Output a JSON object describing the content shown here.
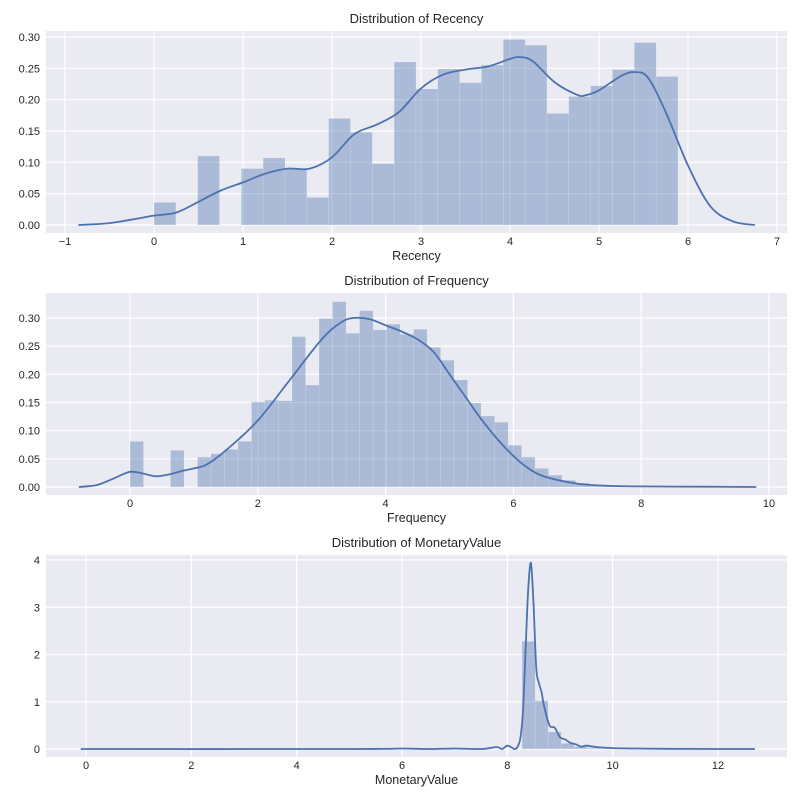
{
  "chart_data": [
    {
      "type": "histogram+kde",
      "title": "Distribution of Recency",
      "xlabel": "Recency",
      "ylabel": "",
      "xlim": [
        -1.2,
        7.1
      ],
      "ylim": [
        0,
        0.31
      ],
      "xticks": [
        -1,
        0,
        1,
        2,
        3,
        4,
        5,
        6,
        7
      ],
      "xtick_labels": [
        "−1",
        "0",
        "1",
        "2",
        "3",
        "4",
        "5",
        "6",
        "7"
      ],
      "yticks": [
        0.0,
        0.05,
        0.1,
        0.15,
        0.2,
        0.25,
        0.3
      ],
      "ytick_labels": [
        "0.00",
        "0.05",
        "0.10",
        "0.15",
        "0.20",
        "0.25",
        "0.30"
      ],
      "grid": true,
      "bins": {
        "start": 0,
        "width": 0.2453,
        "density": [
          0.036,
          0,
          0.11,
          0,
          0.09,
          0.107,
          0.09,
          0.044,
          0.17,
          0.148,
          0.098,
          0.26,
          0.217,
          0.249,
          0.227,
          0.255,
          0.296,
          0.287,
          0.178,
          0.205,
          0.222,
          0.248,
          0.291,
          0.237
        ]
      },
      "kde": {
        "x": [
          -0.85,
          -0.5,
          -0.2,
          0,
          0.25,
          0.5,
          0.75,
          1.0,
          1.25,
          1.5,
          1.75,
          2.0,
          2.25,
          2.5,
          2.75,
          3.0,
          3.25,
          3.5,
          3.75,
          4.0,
          4.1,
          4.25,
          4.5,
          4.75,
          4.85,
          5.0,
          5.25,
          5.4,
          5.55,
          5.75,
          6.0,
          6.25,
          6.5,
          6.75
        ],
        "y": [
          0.0,
          0.003,
          0.01,
          0.015,
          0.02,
          0.037,
          0.055,
          0.068,
          0.082,
          0.09,
          0.09,
          0.108,
          0.145,
          0.16,
          0.18,
          0.218,
          0.24,
          0.248,
          0.253,
          0.265,
          0.268,
          0.262,
          0.228,
          0.208,
          0.207,
          0.215,
          0.238,
          0.244,
          0.235,
          0.18,
          0.095,
          0.03,
          0.006,
          0.0
        ]
      }
    },
    {
      "type": "histogram+kde",
      "title": "Distribution of Frequency",
      "xlabel": "Frequency",
      "ylabel": "",
      "xlim": [
        -1.3,
        10.3
      ],
      "ylim": [
        0,
        0.345
      ],
      "xticks": [
        0,
        2,
        4,
        6,
        8,
        10
      ],
      "xtick_labels": [
        "0",
        "2",
        "4",
        "6",
        "8",
        "10"
      ],
      "yticks": [
        0.0,
        0.05,
        0.1,
        0.15,
        0.2,
        0.25,
        0.3
      ],
      "ytick_labels": [
        "0.00",
        "0.05",
        "0.10",
        "0.15",
        "0.20",
        "0.25",
        "0.30"
      ],
      "grid": true,
      "bins": {
        "start": 0,
        "width": 0.2113,
        "density": [
          0.081,
          0,
          0,
          0.065,
          0,
          0.053,
          0.059,
          0.067,
          0.081,
          0.151,
          0.154,
          0.153,
          0.267,
          0.181,
          0.299,
          0.329,
          0.273,
          0.313,
          0.279,
          0.289,
          0.271,
          0.28,
          0.248,
          0.225,
          0.19,
          0.149,
          0.126,
          0.115,
          0.074,
          0.053,
          0.033,
          0.021,
          0.012,
          0.007,
          0.004,
          0.003,
          0.001
        ]
      },
      "kde": {
        "x": [
          -0.8,
          -0.5,
          -0.2,
          0,
          0.2,
          0.4,
          0.6,
          0.8,
          1.0,
          1.2,
          1.5,
          2.0,
          2.5,
          3.0,
          3.3,
          3.5,
          3.75,
          4.0,
          4.25,
          4.5,
          4.75,
          5.0,
          5.25,
          5.5,
          5.75,
          6.0,
          6.25,
          6.5,
          7.0,
          7.5,
          8.0,
          9.0,
          9.8
        ],
        "y": [
          0.0,
          0.004,
          0.018,
          0.027,
          0.024,
          0.019,
          0.022,
          0.028,
          0.033,
          0.04,
          0.065,
          0.118,
          0.19,
          0.262,
          0.292,
          0.3,
          0.298,
          0.287,
          0.276,
          0.262,
          0.24,
          0.2,
          0.16,
          0.12,
          0.085,
          0.055,
          0.032,
          0.018,
          0.006,
          0.002,
          0.001,
          0.0005,
          0.0
        ]
      }
    },
    {
      "type": "histogram+kde",
      "title": "Distribution of MonetaryValue",
      "xlabel": "MonetaryValue",
      "ylabel": "",
      "xlim": [
        -0.65,
        13.3
      ],
      "ylim": [
        0,
        4.1
      ],
      "xticks": [
        0,
        2,
        4,
        6,
        8,
        10,
        12
      ],
      "xtick_labels": [
        "0",
        "2",
        "4",
        "6",
        "8",
        "10",
        "12"
      ],
      "yticks": [
        0,
        1,
        2,
        3,
        4
      ],
      "ytick_labels": [
        "0",
        "1",
        "2",
        "3",
        "4"
      ],
      "grid": true,
      "bins": {
        "start": 8.28,
        "width": 0.247,
        "density": [
          2.28,
          1.02,
          0.36,
          0.12,
          0.05,
          0.02,
          0.01
        ]
      },
      "kde": {
        "x": [
          -0.1,
          5.0,
          6.0,
          6.5,
          7.0,
          7.5,
          7.8,
          7.9,
          8.0,
          8.1,
          8.15,
          8.2,
          8.25,
          8.3,
          8.35,
          8.4,
          8.45,
          8.5,
          8.55,
          8.6,
          8.65,
          8.7,
          8.8,
          8.9,
          9.0,
          9.1,
          9.2,
          9.3,
          9.4,
          9.5,
          9.7,
          10.0,
          10.5,
          11.0,
          12.0,
          12.7
        ],
        "y": [
          0.0,
          0.0,
          0.01,
          0.0,
          0.01,
          0.0,
          0.04,
          0.0,
          0.07,
          0.02,
          0.0,
          0.06,
          0.25,
          0.85,
          2.2,
          3.45,
          3.93,
          3.0,
          1.7,
          1.4,
          1.2,
          0.9,
          0.5,
          0.45,
          0.25,
          0.2,
          0.13,
          0.1,
          0.05,
          0.07,
          0.04,
          0.02,
          0.01,
          0.005,
          0.0,
          0.0
        ]
      }
    }
  ],
  "style": {
    "plot_background": "#eaeaf2",
    "grid_color": "#ffffff",
    "bar_color": "#4c72b0",
    "bar_alpha": 0.4,
    "line_color": "#4c72b0"
  }
}
